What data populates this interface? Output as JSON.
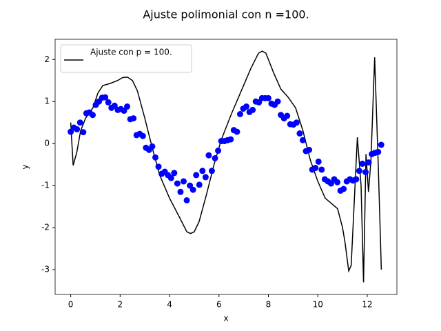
{
  "chart_data": {
    "type": "scatter",
    "title": "Ajuste polimonial con n =100.",
    "xlabel": "x",
    "ylabel": "y",
    "xlim": [
      -0.63,
      13.2
    ],
    "ylim": [
      -3.59,
      2.48
    ],
    "xticks": [
      0,
      2,
      4,
      6,
      8,
      10,
      12
    ],
    "yticks": [
      -3,
      -2,
      -1,
      0,
      1,
      2
    ],
    "legend": "upper left",
    "series": [
      {
        "type": "line",
        "name": "Ajuste con p = 100.",
        "color": "#000000",
        "x": [
          0,
          0.1,
          0.25,
          0.4,
          0.6,
          0.9,
          1.1,
          1.3,
          1.6,
          1.9,
          2.1,
          2.3,
          2.5,
          2.7,
          3.0,
          3.3,
          3.6,
          4.0,
          4.4,
          4.7,
          4.85,
          5.0,
          5.2,
          5.5,
          5.8,
          6.1,
          6.5,
          6.9,
          7.3,
          7.6,
          7.75,
          7.9,
          8.2,
          8.5,
          8.8,
          9.1,
          9.4,
          9.7,
          10.0,
          10.3,
          10.6,
          10.8,
          11.0,
          11.1,
          11.25,
          11.35,
          11.6,
          11.75,
          11.85,
          11.95,
          12.05,
          12.15,
          12.3,
          12.45,
          12.57
        ],
        "y": [
          0.5,
          -0.52,
          -0.2,
          0.3,
          0.6,
          0.85,
          1.2,
          1.38,
          1.43,
          1.5,
          1.57,
          1.58,
          1.5,
          1.25,
          0.6,
          -0.1,
          -0.75,
          -1.3,
          -1.75,
          -2.1,
          -2.14,
          -2.1,
          -1.85,
          -1.2,
          -0.5,
          0.1,
          0.7,
          1.25,
          1.8,
          2.15,
          2.2,
          2.15,
          1.7,
          1.3,
          1.1,
          0.85,
          0.3,
          -0.4,
          -0.9,
          -1.3,
          -1.45,
          -1.55,
          -2.0,
          -2.35,
          -3.03,
          -2.9,
          0.15,
          -1.0,
          -3.3,
          -0.25,
          -1.15,
          -0.4,
          2.05,
          -0.6,
          -3.0
        ]
      },
      {
        "type": "scatter",
        "color": "#0000ff",
        "x": [
          0,
          0.127,
          0.254,
          0.381,
          0.508,
          0.635,
          0.762,
          0.889,
          1.016,
          1.142,
          1.269,
          1.396,
          1.523,
          1.65,
          1.777,
          1.904,
          2.031,
          2.158,
          2.285,
          2.412,
          2.539,
          2.666,
          2.793,
          2.92,
          3.046,
          3.173,
          3.3,
          3.427,
          3.554,
          3.681,
          3.808,
          3.935,
          4.062,
          4.189,
          4.316,
          4.443,
          4.57,
          4.697,
          4.824,
          4.951,
          5.078,
          5.205,
          5.332,
          5.459,
          5.586,
          5.712,
          5.839,
          5.966,
          6.093,
          6.22,
          6.347,
          6.474,
          6.601,
          6.728,
          6.855,
          6.982,
          7.109,
          7.236,
          7.363,
          7.49,
          7.616,
          7.743,
          7.87,
          7.997,
          8.124,
          8.251,
          8.378,
          8.505,
          8.632,
          8.759,
          8.886,
          9.013,
          9.14,
          9.267,
          9.393,
          9.52,
          9.647,
          9.774,
          9.901,
          10.028,
          10.155,
          10.282,
          10.409,
          10.536,
          10.663,
          10.79,
          10.917,
          11.044,
          11.171,
          11.298,
          11.424,
          11.551,
          11.678,
          11.805,
          11.932,
          12.059,
          12.186,
          12.313,
          12.44,
          12.566
        ],
        "y": [
          0.28,
          0.38,
          0.34,
          0.5,
          0.27,
          0.72,
          0.74,
          0.68,
          0.92,
          1.0,
          1.09,
          1.1,
          0.98,
          0.85,
          0.9,
          0.8,
          0.82,
          0.78,
          0.88,
          0.58,
          0.6,
          0.2,
          0.23,
          0.18,
          -0.1,
          -0.15,
          -0.07,
          -0.33,
          -0.55,
          -0.72,
          -0.67,
          -0.75,
          -0.82,
          -0.7,
          -0.95,
          -1.15,
          -0.9,
          -1.35,
          -1.0,
          -1.1,
          -0.75,
          -0.98,
          -0.65,
          -0.8,
          -0.28,
          -0.65,
          -0.35,
          -0.17,
          0.06,
          0.06,
          0.08,
          0.1,
          0.32,
          0.28,
          0.7,
          0.83,
          0.88,
          0.75,
          0.8,
          1.0,
          0.98,
          1.08,
          1.08,
          1.08,
          0.95,
          0.92,
          1.0,
          0.68,
          0.6,
          0.66,
          0.46,
          0.45,
          0.5,
          0.24,
          0.08,
          -0.18,
          -0.15,
          -0.62,
          -0.58,
          -0.43,
          -0.62,
          -0.85,
          -0.9,
          -0.95,
          -0.85,
          -0.92,
          -1.12,
          -1.08,
          -0.9,
          -0.85,
          -0.88,
          -0.85,
          -0.65,
          -0.48,
          -0.68,
          -0.45,
          -0.25,
          -0.22,
          -0.2,
          -0.03
        ]
      }
    ]
  }
}
